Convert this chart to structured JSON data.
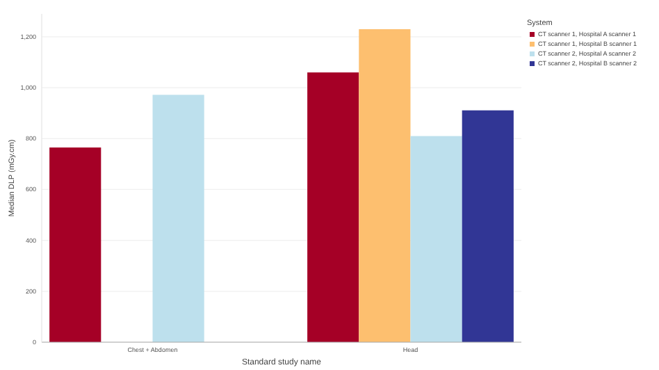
{
  "chart_data": {
    "type": "bar",
    "xlabel": "Standard study name",
    "ylabel": "Median DLP (mGy.cm)",
    "legend_title": "System",
    "categories": [
      "Chest + Abdomen",
      "Head"
    ],
    "series": [
      {
        "name": "CT scanner 1, Hospital A scanner 1",
        "color": "#a50026",
        "values": [
          765,
          1060
        ]
      },
      {
        "name": "CT scanner 1, Hospital B scanner 1",
        "color": "#fdbf6f",
        "values": [
          null,
          1230
        ]
      },
      {
        "name": "CT scanner 2, Hospital A scanner 2",
        "color": "#bde0ed",
        "values": [
          972,
          810
        ]
      },
      {
        "name": "CT scanner 2, Hospital B scanner 2",
        "color": "#313695",
        "values": [
          null,
          911
        ]
      }
    ],
    "ylim": [
      0,
      1290
    ],
    "yticks": [
      0,
      200,
      400,
      600,
      800,
      {
        "value": 1000,
        "label": "1,000"
      },
      {
        "value": 1200,
        "label": "1,200"
      }
    ],
    "grid": "y",
    "legend": "top right"
  }
}
